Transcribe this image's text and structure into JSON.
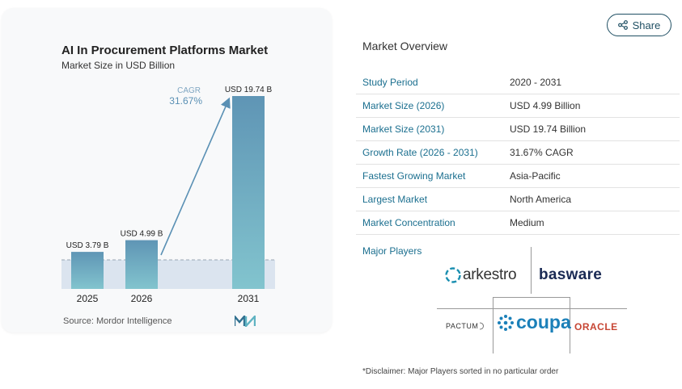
{
  "chart": {
    "title": "AI In Procurement Platforms Market",
    "subtitle": "Market Size in USD Billion",
    "source": "Source: Mordor Intelligence",
    "cagr_label": "CAGR",
    "cagr_value": "31.67%"
  },
  "chart_data": {
    "type": "bar",
    "title": "AI In Procurement Platforms Market",
    "subtitle": "Market Size in USD Billion",
    "categories": [
      "2025",
      "2026",
      "2031"
    ],
    "values": [
      3.79,
      4.99,
      19.74
    ],
    "data_labels": [
      "USD 3.79 B",
      "USD 4.99 B",
      "USD 19.74 B"
    ],
    "ylim": [
      0,
      20
    ],
    "grid": false,
    "colors": {
      "bar_top": "#5f95b5",
      "bar_bottom": "#82c4ce",
      "baseline": "#dbe4ef",
      "arrow": "#5a90b4"
    }
  },
  "share": {
    "label": "Share",
    "icon": "share-icon"
  },
  "overview": {
    "title": "Market Overview",
    "rows": [
      {
        "label": "Study Period",
        "value": "2020 - 2031"
      },
      {
        "label": "Market Size (2026)",
        "value": "USD 4.99 Billion"
      },
      {
        "label": "Market Size (2031)",
        "value": "USD 19.74 Billion"
      },
      {
        "label": "Growth Rate (2026 - 2031)",
        "value": "31.67% CAGR"
      },
      {
        "label": "Fastest Growing Market",
        "value": "Asia-Pacific"
      },
      {
        "label": "Largest Market",
        "value": "North America"
      },
      {
        "label": "Market Concentration",
        "value": "Medium"
      }
    ]
  },
  "players": {
    "title": "Major Players",
    "logos": {
      "arkestro": "arkestro",
      "basware": "basware",
      "pactum": "PACTUM",
      "coupa": "coupa",
      "oracle": "ORACLE"
    }
  },
  "disclaimer": "*Disclaimer: Major Players sorted in no particular order"
}
